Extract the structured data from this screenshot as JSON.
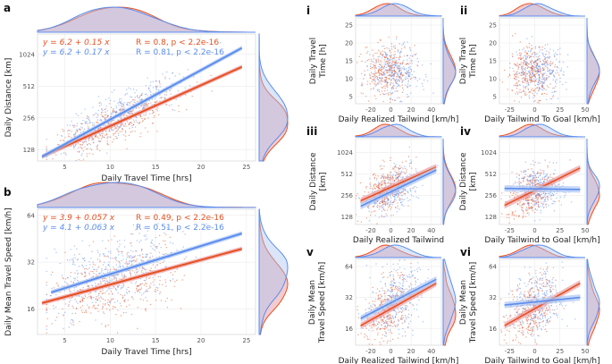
{
  "colors": {
    "red": "#e8501f",
    "blue": "#5b8def",
    "red_fill": "#e9a0a6",
    "blue_fill": "#aec6f2"
  },
  "chart_data": [
    {
      "id": "a",
      "letter": "a",
      "type": "scatter",
      "xlabel": "Daily Travel Time [hrs]",
      "ylabel": "Daily Distance [km]",
      "xlim": [
        2,
        26
      ],
      "ylim": [
        100,
        1600
      ],
      "ylog": true,
      "xticks": [
        5,
        10,
        15,
        20,
        25
      ],
      "yticks": [
        128,
        256,
        512,
        1024
      ],
      "series": [
        {
          "name": "red",
          "line": {
            "x": [
              2.5,
              24.5
            ],
            "y": [
              110,
              780
            ]
          },
          "equation": "y = 6.2 + 0.15 x",
          "stats": "R = 0.8, p < 2.2e-16"
        },
        {
          "name": "blue",
          "line": {
            "x": [
              2.5,
              24.5
            ],
            "y": [
              110,
              1180
            ]
          },
          "equation": "y = 6.2 + 0.17 x",
          "stats": "R = 0.81, p < 2.2e-16"
        }
      ]
    },
    {
      "id": "b",
      "letter": "b",
      "type": "scatter",
      "xlabel": "Daily Travel Time [hrs]",
      "ylabel": "Daily Mean Travel Speed [km/h]",
      "xlim": [
        2,
        26
      ],
      "ylim": [
        11,
        70
      ],
      "ylog": true,
      "xticks": [
        5,
        10,
        15,
        20,
        25
      ],
      "yticks": [
        16,
        32,
        64
      ],
      "series": [
        {
          "name": "red",
          "line": {
            "x": [
              2.5,
              24.5
            ],
            "y": [
              17.5,
              39
            ]
          },
          "equation": "y = 3.9 + 0.057 x",
          "stats": "R = 0.49, p < 2.2e-16"
        },
        {
          "name": "blue",
          "line": {
            "x": [
              3.5,
              24.5
            ],
            "y": [
              20.5,
              49
            ]
          },
          "equation": "y = 4.1 + 0.063 x",
          "stats": "R = 0.51, p < 2.2e-16"
        }
      ]
    },
    {
      "id": "i",
      "letter": "i",
      "type": "scatter",
      "xlabel": "Daily Realized Tailwind [km/h]",
      "ylabel": "Daily Travel Time [h]",
      "xlim": [
        -35,
        50
      ],
      "ylim": [
        3,
        27
      ],
      "ylog": false,
      "xticks": [
        -20,
        0,
        20,
        40
      ],
      "yticks": [
        5,
        10,
        15,
        20,
        25
      ],
      "series": []
    },
    {
      "id": "ii",
      "letter": "ii",
      "type": "scatter",
      "xlabel": "Daily Tailwind To Goal [km/h]",
      "ylabel": "Daily Travel Time [h]",
      "xlim": [
        -35,
        50
      ],
      "ylim": [
        3,
        27
      ],
      "ylog": false,
      "xticks": [
        -25,
        0,
        25,
        50
      ],
      "yticks": [
        5,
        10,
        15,
        20,
        25
      ],
      "series": []
    },
    {
      "id": "iii",
      "letter": "iii",
      "type": "scatter",
      "xlabel": "Daily Realized Tailwind",
      "ylabel": "Daily Distance [km]",
      "xlim": [
        -35,
        50
      ],
      "ylim": [
        100,
        1600
      ],
      "ylog": true,
      "xticks": [
        -20,
        0,
        20,
        40
      ],
      "yticks": [
        128,
        256,
        512,
        1024
      ],
      "series": [
        {
          "name": "red",
          "line": {
            "x": [
              -30,
              45
            ],
            "y": [
              215,
              640
            ]
          }
        },
        {
          "name": "blue",
          "line": {
            "x": [
              -30,
              45
            ],
            "y": [
              180,
              580
            ]
          }
        }
      ]
    },
    {
      "id": "iv",
      "letter": "iv",
      "type": "scatter",
      "xlabel": "Daily Tailwind to Goal [km/h]",
      "ylabel": "Daily Distance [km]",
      "xlim": [
        -35,
        50
      ],
      "ylim": [
        100,
        1600
      ],
      "ylog": true,
      "xticks": [
        -25,
        0,
        25,
        50
      ],
      "yticks": [
        128,
        256,
        512,
        1024
      ],
      "series": [
        {
          "name": "red",
          "line": {
            "x": [
              -30,
              45
            ],
            "y": [
              185,
              620
            ]
          }
        },
        {
          "name": "blue",
          "line": {
            "x": [
              -30,
              45
            ],
            "y": [
              320,
              310
            ]
          }
        }
      ]
    },
    {
      "id": "v",
      "letter": "v",
      "type": "scatter",
      "xlabel": "Daily Realized Tailwind [km/h]",
      "ylabel": "Daily Mean Travel Speed [km/h]",
      "xlim": [
        -35,
        50
      ],
      "ylim": [
        11,
        75
      ],
      "ylog": true,
      "xticks": [
        -20,
        0,
        20,
        40
      ],
      "yticks": [
        16,
        32,
        64
      ],
      "series": [
        {
          "name": "red",
          "line": {
            "x": [
              -30,
              45
            ],
            "y": [
              17,
              44
            ]
          }
        },
        {
          "name": "blue",
          "line": {
            "x": [
              -30,
              45
            ],
            "y": [
              20,
              48
            ]
          }
        }
      ]
    },
    {
      "id": "vi",
      "letter": "vi",
      "type": "scatter",
      "xlabel": "Daily Tailwind to Goal [km/h]",
      "ylabel": "Daily Mean Travel Speed [km/h]",
      "xlim": [
        -35,
        50
      ],
      "ylim": [
        11,
        75
      ],
      "ylog": true,
      "xticks": [
        -25,
        0,
        25,
        50
      ],
      "yticks": [
        16,
        32,
        64
      ],
      "series": [
        {
          "name": "red",
          "line": {
            "x": [
              -30,
              45
            ],
            "y": [
              17,
              44
            ]
          }
        },
        {
          "name": "blue",
          "line": {
            "x": [
              -30,
              45
            ],
            "y": [
              27,
              32
            ]
          }
        }
      ]
    }
  ]
}
